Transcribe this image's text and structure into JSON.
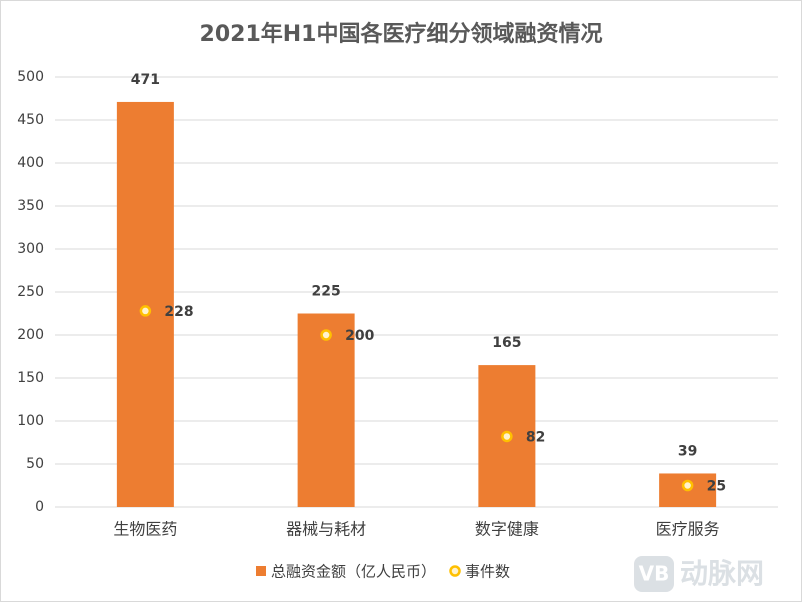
{
  "chart_data": {
    "type": "bar",
    "title": "2021年H1中国各医疗细分领域融资情况",
    "categories": [
      "生物医药",
      "器械与耗材",
      "数字健康",
      "医疗服务"
    ],
    "series": [
      {
        "name": "总融资金额（亿人民币）",
        "type": "bar",
        "color": "#ed7d31",
        "values": [
          471,
          225,
          165,
          39
        ]
      },
      {
        "name": "事件数",
        "type": "scatter",
        "color": "#ffc000",
        "values": [
          228,
          200,
          82,
          25
        ]
      }
    ],
    "ylim": [
      0,
      500
    ],
    "yticks": [
      0,
      50,
      100,
      150,
      200,
      250,
      300,
      350,
      400,
      450,
      500
    ],
    "grid": true,
    "legend": "bottom",
    "watermark_logo": "VB",
    "watermark": "动脉网"
  }
}
